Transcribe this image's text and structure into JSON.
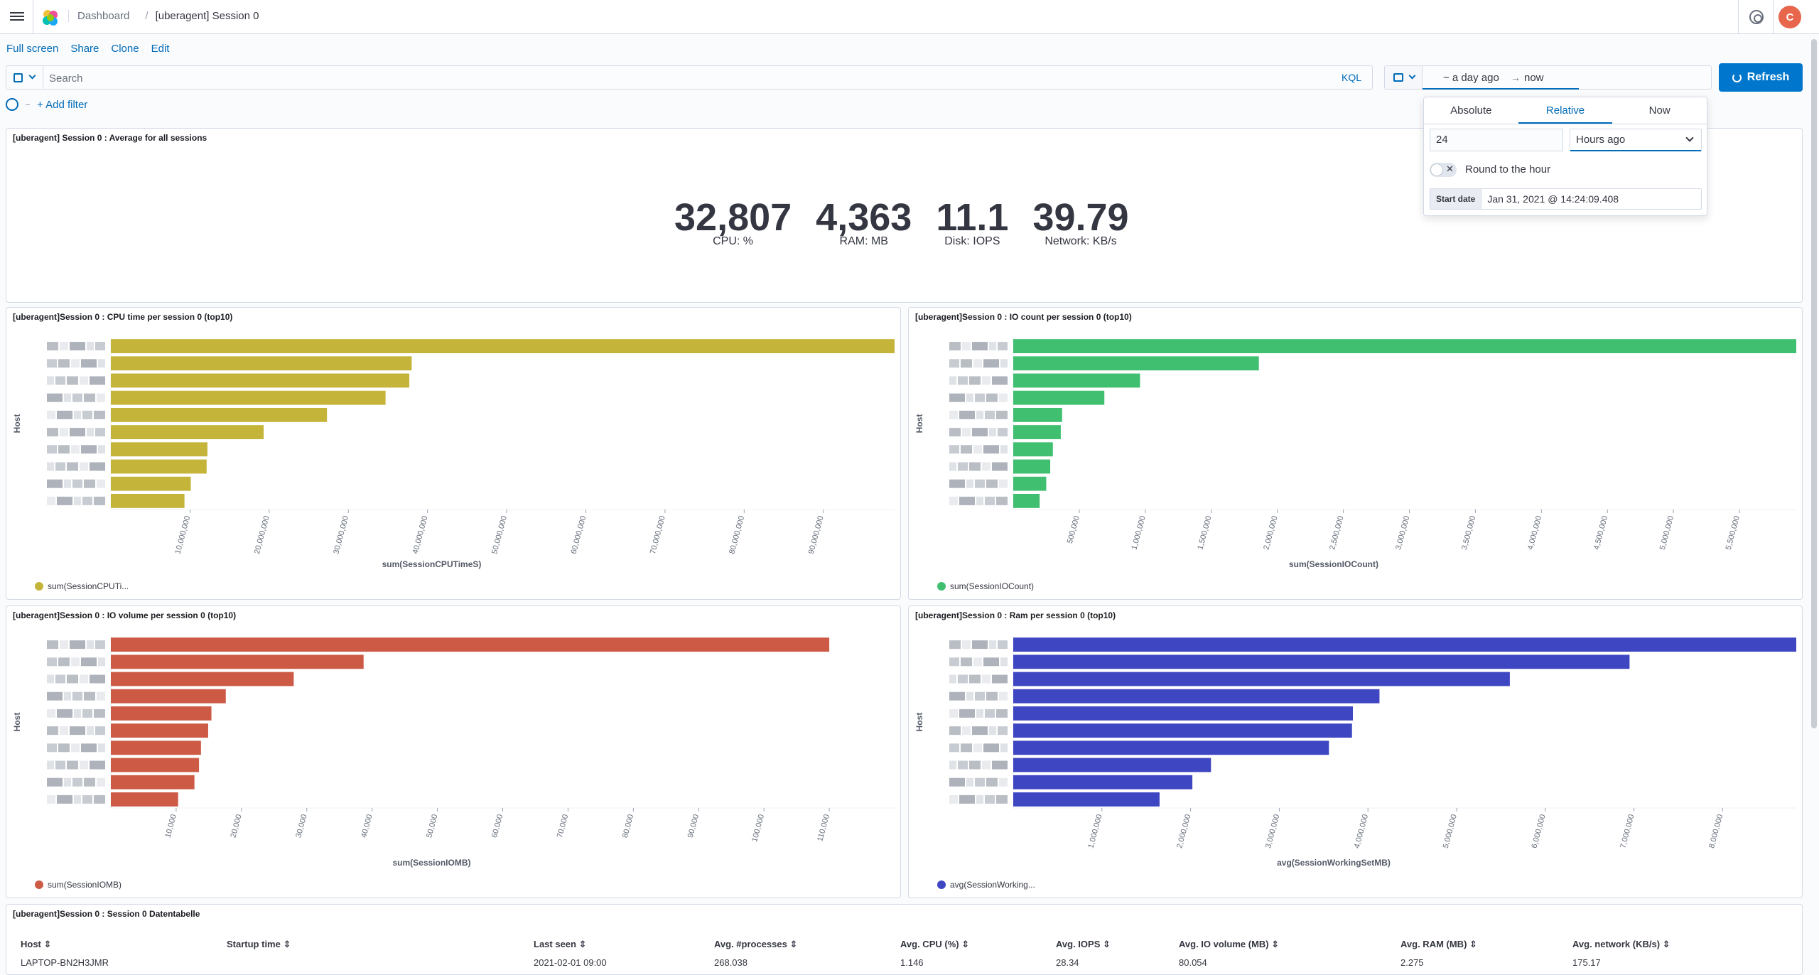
{
  "header": {
    "breadcrumb_root": "Dashboard",
    "breadcrumb_current": "[uberagent] Session 0",
    "avatar_initial": "C"
  },
  "actions": {
    "full_screen": "Full screen",
    "share": "Share",
    "clone": "Clone",
    "edit": "Edit"
  },
  "query": {
    "placeholder": "Search",
    "language": "KQL"
  },
  "datepicker": {
    "start": "~ a day ago",
    "end": "now",
    "refresh_label": "Refresh",
    "tabs": [
      "Absolute",
      "Relative",
      "Now"
    ],
    "active_tab": "Relative",
    "amount": "24",
    "unit": "Hours ago",
    "round_label": "Round to the hour",
    "start_date_label": "Start date",
    "start_date_value": "Jan 31, 2021 @ 14:24:09.408"
  },
  "filters": {
    "add_filter": "+ Add filter"
  },
  "metrics_panel": {
    "title": "[uberagent] Session 0 : Average for all sessions",
    "metrics": [
      {
        "value": "32,807",
        "label": "CPU: %"
      },
      {
        "value": "4,363",
        "label": "RAM: MB"
      },
      {
        "value": "11.1",
        "label": "Disk: IOPS"
      },
      {
        "value": "39.79",
        "label": "Network: KB/s"
      }
    ]
  },
  "chart_data": [
    {
      "type": "bar",
      "orientation": "horizontal",
      "title": "[uberagent]Session 0 : CPU time per session 0 (top10)",
      "ylabel": "Host",
      "xlabel": "sum(SessionCPUTimeS)",
      "legend": "sum(SessionCPUTi...",
      "color": "#c4b43a",
      "xlim": [
        0,
        99000000
      ],
      "xticks": [
        "10,000,000",
        "20,000,000",
        "30,000,000",
        "40,000,000",
        "50,000,000",
        "60,000,000",
        "70,000,000",
        "80,000,000",
        "90,000,000"
      ],
      "tick_values": [
        10000000,
        20000000,
        30000000,
        40000000,
        50000000,
        60000000,
        70000000,
        80000000,
        90000000
      ],
      "values": [
        99000000,
        38000000,
        37700000,
        34700000,
        27300000,
        19300000,
        12200000,
        12100000,
        10100000,
        9300000
      ]
    },
    {
      "type": "bar",
      "orientation": "horizontal",
      "title": "[uberagent]Session 0 : IO count per session 0 (top10)",
      "ylabel": "Host",
      "xlabel": "sum(SessionIOCount)",
      "legend": "sum(SessionIOCount)",
      "color": "#3fbf6f",
      "xlim": [
        0,
        5930000
      ],
      "xticks": [
        "500,000",
        "1,000,000",
        "1,500,000",
        "2,000,000",
        "2,500,000",
        "3,000,000",
        "3,500,000",
        "4,000,000",
        "4,500,000",
        "5,000,000",
        "5,500,000"
      ],
      "tick_values": [
        500000,
        1000000,
        1500000,
        2000000,
        2500000,
        3000000,
        3500000,
        4000000,
        4500000,
        5000000,
        5500000
      ],
      "values": [
        5930000,
        1860000,
        960000,
        690000,
        370000,
        360000,
        300000,
        280000,
        250000,
        200000
      ]
    },
    {
      "type": "bar",
      "orientation": "horizontal",
      "title": "[uberagent]Session 0 : IO volume per session 0 (top10)",
      "ylabel": "Host",
      "xlabel": "sum(SessionIOMB)",
      "legend": "sum(SessionIOMB)",
      "color": "#cc5a45",
      "xlim": [
        0,
        120000
      ],
      "xticks": [
        "10,000",
        "20,000",
        "30,000",
        "40,000",
        "50,000",
        "60,000",
        "70,000",
        "80,000",
        "90,000",
        "100,000",
        "110,000"
      ],
      "tick_values": [
        10000,
        20000,
        30000,
        40000,
        50000,
        60000,
        70000,
        80000,
        90000,
        100000,
        110000
      ],
      "values": [
        110000,
        38700,
        28000,
        17600,
        15400,
        14900,
        13800,
        13500,
        12800,
        10300
      ]
    },
    {
      "type": "bar",
      "orientation": "horizontal",
      "title": "[uberagent]Session 0 : Ram per session 0 (top10)",
      "ylabel": "Host",
      "xlabel": "avg(SessionWorkingSetMB)",
      "legend": "avg(SessionWorking...",
      "color": "#3f46c2",
      "xlim": [
        0,
        8830000
      ],
      "xticks": [
        "1,000,000",
        "2,000,000",
        "3,000,000",
        "4,000,000",
        "5,000,000",
        "6,000,000",
        "7,000,000",
        "8,000,000"
      ],
      "tick_values": [
        1000000,
        2000000,
        3000000,
        4000000,
        5000000,
        6000000,
        7000000,
        8000000
      ],
      "values": [
        8830000,
        6950000,
        5600000,
        4130000,
        3830000,
        3820000,
        3560000,
        2230000,
        2020000,
        1650000
      ]
    }
  ],
  "table": {
    "title": "[uberagent]Session 0 : Session 0 Datentabelle",
    "columns": [
      "Host",
      "Startup time",
      "Last seen",
      "Avg. #processes",
      "Avg. CPU (%)",
      "Avg. IOPS",
      "Avg. IO volume (MB)",
      "Avg. RAM (MB)",
      "Avg. network (KB/s)"
    ],
    "rows": [
      [
        "LAPTOP-BN2H3JMR",
        "",
        "2021-02-01 09:00",
        "268.038",
        "1.146",
        "28.34",
        "80.054",
        "2.275",
        "175.17"
      ]
    ]
  }
}
